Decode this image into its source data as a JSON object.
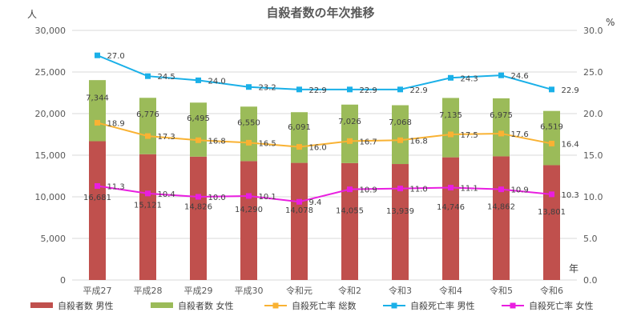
{
  "chart_data": {
    "type": "bar",
    "title": "自殺者数の年次推移",
    "left_unit": "人",
    "right_unit": "%",
    "x_unit": "年",
    "categories": [
      "平成27",
      "平成28",
      "平成29",
      "平成30",
      "令和元",
      "令和2",
      "令和3",
      "令和4",
      "令和5",
      "令和6"
    ],
    "ylim": [
      0,
      30000
    ],
    "y_ticks": [
      "0",
      "5,000",
      "10,000",
      "15,000",
      "20,000",
      "25,000",
      "30,000"
    ],
    "y2lim": [
      0,
      30
    ],
    "y2_ticks": [
      "0.0",
      "5.0",
      "10.0",
      "15.0",
      "20.0",
      "25.0",
      "30.0"
    ],
    "bar_series": [
      {
        "name": "自殺者数 男性",
        "color": "#c0504d",
        "values": [
          16681,
          15121,
          14826,
          14290,
          14078,
          14055,
          13939,
          14746,
          14862,
          13801
        ],
        "labels": [
          "16,681",
          "15,121",
          "14,826",
          "14,290",
          "14,078",
          "14,055",
          "13,939",
          "14,746",
          "14,862",
          "13,801"
        ]
      },
      {
        "name": "自殺者数 女性",
        "color": "#9bbb59",
        "values": [
          7344,
          6776,
          6495,
          6550,
          6091,
          7026,
          7068,
          7135,
          6975,
          6519
        ],
        "labels": [
          "7,344",
          "6,776",
          "6,495",
          "6,550",
          "6,091",
          "7,026",
          "7,068",
          "7,135",
          "6,975",
          "6,519"
        ]
      }
    ],
    "line_series": [
      {
        "name": "自殺死亡率 総数",
        "color": "#f9b233",
        "values": [
          18.9,
          17.3,
          16.8,
          16.5,
          16.0,
          16.7,
          16.8,
          17.5,
          17.6,
          16.4
        ],
        "labels": [
          "18.9",
          "17.3",
          "16.8",
          "16.5",
          "16.0",
          "16.7",
          "16.8",
          "17.5",
          "17.6",
          "16.4"
        ]
      },
      {
        "name": "自殺死亡率 男性",
        "color": "#1ab0e8",
        "values": [
          27.0,
          24.5,
          24.0,
          23.2,
          22.9,
          22.9,
          22.9,
          24.3,
          24.6,
          22.9
        ],
        "labels": [
          "27.0",
          "24.5",
          "24.0",
          "23.2",
          "22.9",
          "22.9",
          "22.9",
          "24.3",
          "24.6",
          "22.9"
        ]
      },
      {
        "name": "自殺死亡率 女性",
        "color": "#e91ee0",
        "values": [
          11.3,
          10.4,
          10.0,
          10.1,
          9.4,
          10.9,
          11.0,
          11.1,
          10.9,
          10.3
        ],
        "labels": [
          "11.3",
          "10.4",
          "10.0",
          "10.1",
          "9.4",
          "10.9",
          "11.0",
          "11.1",
          "10.9",
          "10.3"
        ]
      }
    ]
  }
}
